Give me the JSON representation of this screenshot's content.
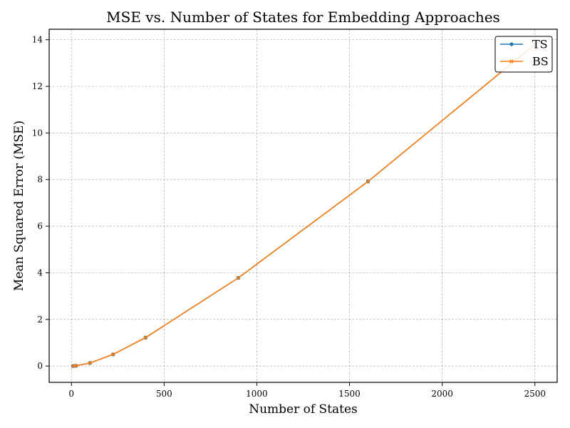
{
  "chart_data": {
    "type": "line",
    "title": "MSE vs. Number of States for Embedding Approaches",
    "xlabel": "Number of States",
    "ylabel": "Mean Squared Error (MSE)",
    "xlim": [
      -120,
      2620
    ],
    "ylim": [
      -0.7,
      14.45
    ],
    "xticks": [
      0,
      500,
      1000,
      1500,
      2000,
      2500
    ],
    "yticks": [
      0,
      2,
      4,
      6,
      8,
      10,
      12,
      14
    ],
    "grid": true,
    "legend_position": "top-right",
    "x": [
      9,
      25,
      100,
      225,
      400,
      900,
      1600,
      2500
    ],
    "series": [
      {
        "name": "TS",
        "color": "#1f77b4",
        "marker": "circle",
        "values": [
          0.0,
          0.01,
          0.13,
          0.5,
          1.22,
          3.78,
          7.92,
          13.8
        ]
      },
      {
        "name": "BS",
        "color": "#ff7f0e",
        "marker": "x",
        "values": [
          0.0,
          0.01,
          0.13,
          0.5,
          1.22,
          3.78,
          7.92,
          13.8
        ]
      }
    ]
  }
}
